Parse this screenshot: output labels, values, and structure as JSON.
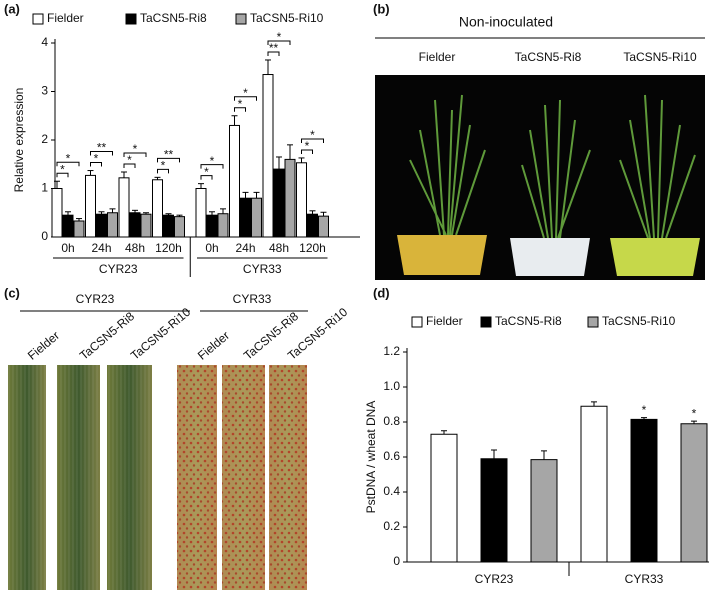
{
  "panel_labels": [
    "(a)",
    "(b)",
    "(c)",
    "(d)"
  ],
  "photo_b": {
    "title": "Non-inoculated",
    "labels": [
      "Fielder",
      "TaCSN5-Ri8",
      "TaCSN5-Ri10"
    ]
  },
  "photo_c": {
    "groups": [
      "CYR23",
      "CYR33"
    ],
    "labels": [
      "Fielder",
      "TaCSN5-Ri8",
      "TaCSN5-Ri10",
      "Fielder",
      "TaCSN5-Ri8",
      "TaCSN5-Ri10"
    ]
  },
  "chart_data": [
    {
      "type": "bar",
      "y_label": "Relative expression",
      "categories": [
        "0h",
        "24h",
        "48h",
        "120h",
        "0h",
        "24h",
        "48h",
        "120h"
      ],
      "category_groups": [
        "CYR23",
        "CYR33"
      ],
      "series": [
        {
          "name": "Fielder",
          "color": "#ffffff",
          "values": [
            1.0,
            1.27,
            1.22,
            1.18,
            1.0,
            2.3,
            3.35,
            1.53
          ],
          "errors": [
            0.15,
            0.1,
            0.12,
            0.05,
            0.1,
            0.2,
            0.3,
            0.1
          ]
        },
        {
          "name": "TaCSN5-Ri8",
          "color": "#000000",
          "values": [
            0.45,
            0.47,
            0.5,
            0.45,
            0.45,
            0.8,
            1.4,
            0.47
          ],
          "errors": [
            0.07,
            0.05,
            0.05,
            0.03,
            0.07,
            0.12,
            0.25,
            0.07
          ],
          "significance": [
            "*",
            "*",
            "*",
            "*",
            "*",
            "*",
            "**",
            "*"
          ]
        },
        {
          "name": "TaCSN5-Ri10",
          "color": "#a6a6a6",
          "values": [
            0.33,
            0.5,
            0.47,
            0.42,
            0.48,
            0.8,
            1.6,
            0.43
          ],
          "errors": [
            0.05,
            0.08,
            0.03,
            0.03,
            0.1,
            0.12,
            0.3,
            0.08
          ],
          "significance": [
            "*",
            "**",
            "*",
            "**",
            "*",
            "*",
            "*",
            "*"
          ]
        }
      ],
      "ylim": [
        0,
        4
      ],
      "yticks": [
        0,
        1,
        2,
        3,
        4
      ],
      "grid": false
    },
    {
      "type": "bar",
      "y_label": "PstDNA / wheat DNA",
      "categories": [
        "CYR23",
        "CYR33"
      ],
      "series": [
        {
          "name": "Fielder",
          "color": "#ffffff",
          "values": [
            0.73,
            0.89
          ],
          "errors": [
            0.02,
            0.025
          ]
        },
        {
          "name": "TaCSN5-Ri8",
          "color": "#000000",
          "values": [
            0.59,
            0.815
          ],
          "errors": [
            0.05,
            0.01
          ],
          "significance": [
            null,
            "*"
          ]
        },
        {
          "name": "TaCSN5-Ri10",
          "color": "#a6a6a6",
          "values": [
            0.585,
            0.79
          ],
          "errors": [
            0.05,
            0.015
          ],
          "significance": [
            null,
            "*"
          ]
        }
      ],
      "ylim": [
        0,
        1.2
      ],
      "yticks": [
        0,
        0.2,
        0.4,
        0.6,
        0.8,
        {
          "value": 1,
          "label": "1.0"
        },
        1.2
      ],
      "grid": false
    }
  ]
}
